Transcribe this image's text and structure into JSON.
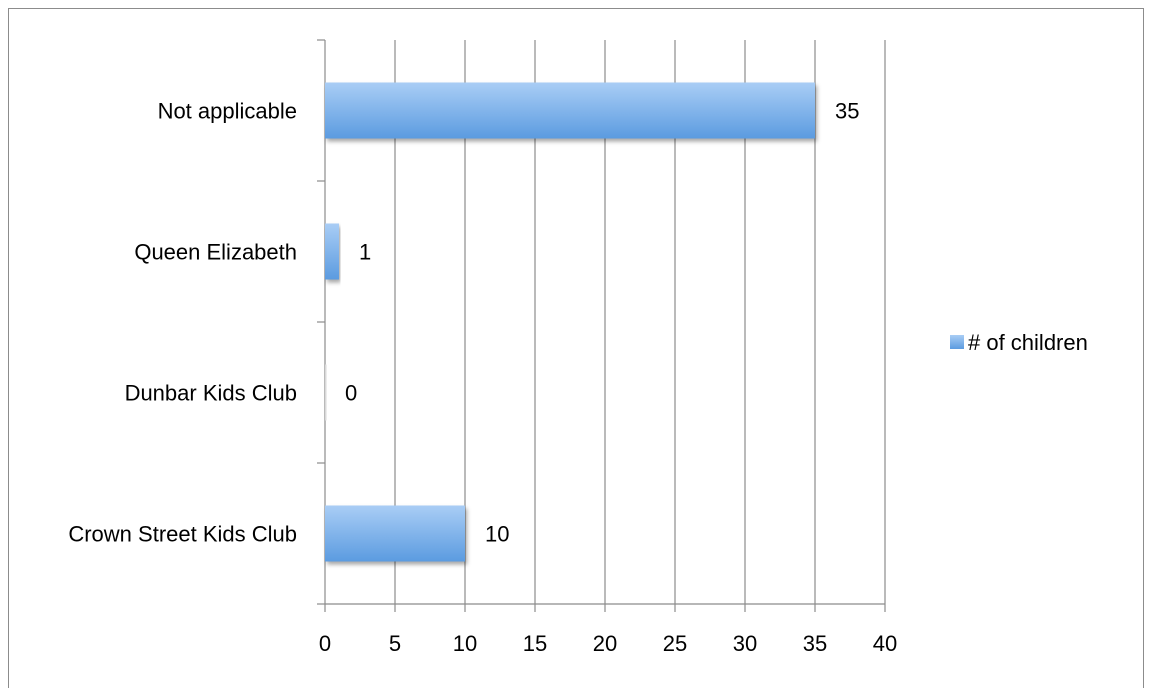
{
  "chart_data": {
    "type": "bar",
    "orientation": "horizontal",
    "categories": [
      "Crown Street Kids Club",
      "Dunbar Kids Club",
      "Queen Elizabeth",
      "Not applicable"
    ],
    "series": [
      {
        "name": "# of children",
        "values": [
          10,
          0,
          1,
          35
        ]
      }
    ],
    "data_labels": [
      "10",
      "0",
      "1",
      "35"
    ],
    "x_ticks": [
      "0",
      "5",
      "10",
      "15",
      "20",
      "25",
      "30",
      "35",
      "40"
    ],
    "xlim": [
      0,
      40
    ],
    "grid": "vertical",
    "legend_position": "right",
    "bar_color": "#5b9be0",
    "bar_color_light": "#a9cdf5",
    "gridline_color": "#8c8c8c"
  }
}
